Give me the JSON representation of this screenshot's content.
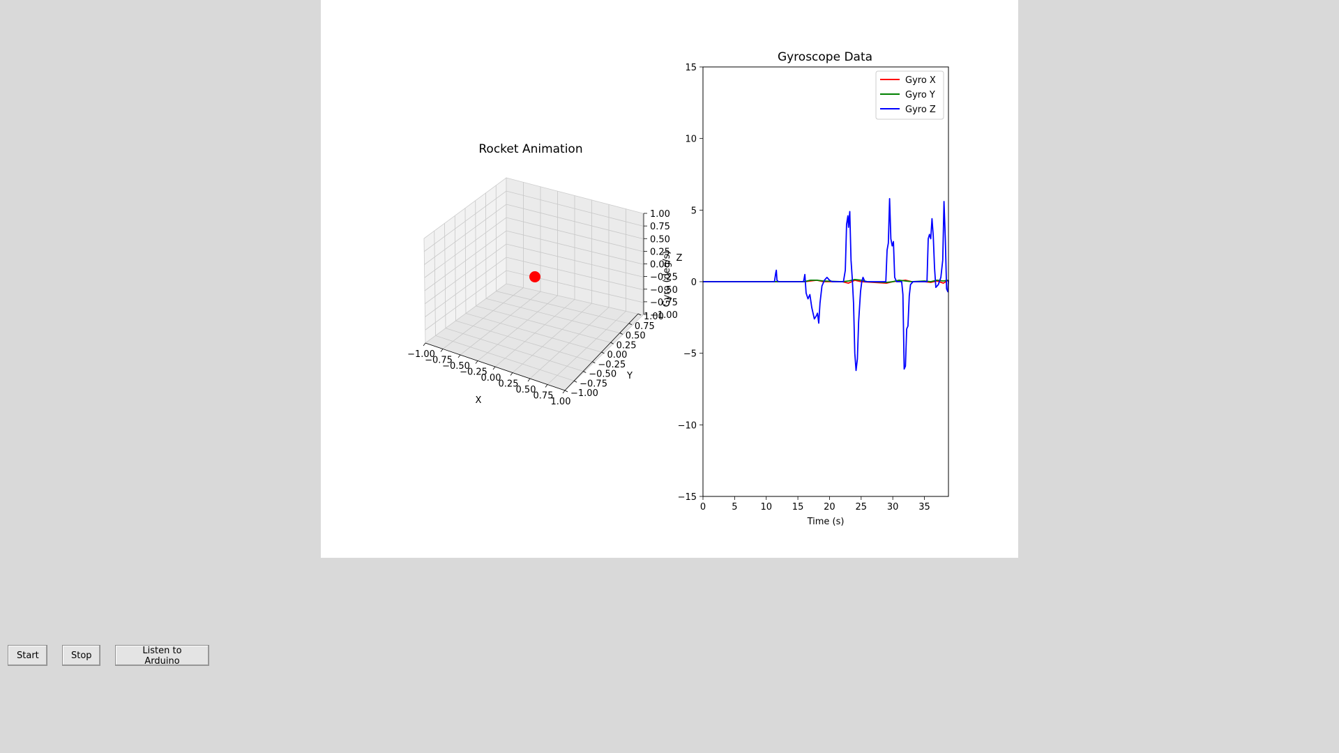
{
  "buttons": {
    "start": "Start",
    "stop": "Stop",
    "listen": "Listen to Arduino"
  },
  "colors": {
    "window_bg": "#d9d9d9",
    "figure_bg": "#ffffff",
    "marker": "#ff0000",
    "gyro_x": "#ff0000",
    "gyro_y": "#008000",
    "gyro_z": "#0000ff"
  },
  "chart_data": [
    {
      "type": "scatter",
      "subtype": "3d",
      "title": "Rocket Animation",
      "xlabel": "X",
      "ylabel": "Y",
      "zlabel": "Z",
      "overlapping_label": "Gyro (deg/s)",
      "xlim": [
        -1,
        1
      ],
      "ylim": [
        -1,
        1
      ],
      "zlim": [
        -1,
        1
      ],
      "tick_labels": [
        "−1.00",
        "−0.75",
        "−0.50",
        "−0.25",
        "0.00",
        "0.25",
        "0.50",
        "0.75",
        "1.00"
      ],
      "points": [
        {
          "x": 0,
          "y": 0,
          "z": 0
        }
      ],
      "marker_color": "#ff0000",
      "grid": true
    },
    {
      "type": "line",
      "title": "Gyroscope Data",
      "xlabel": "Time (s)",
      "ylabel": "",
      "xlim": [
        0,
        38.8
      ],
      "ylim": [
        -15,
        15
      ],
      "xticks": [
        "0",
        "5",
        "10",
        "15",
        "20",
        "25",
        "30",
        "35"
      ],
      "yticks": [
        "15",
        "10",
        "5",
        "0",
        "−5",
        "−10",
        "−15"
      ],
      "legend_position": "top-right",
      "grid": false,
      "series": [
        {
          "name": "Gyro X",
          "color": "#ff0000",
          "points": [
            [
              0,
              0
            ],
            [
              16,
              0
            ],
            [
              17,
              0.05
            ],
            [
              18,
              0.1
            ],
            [
              19,
              0
            ],
            [
              22,
              0
            ],
            [
              23,
              -0.1
            ],
            [
              24,
              0.1
            ],
            [
              25,
              0
            ],
            [
              29,
              -0.1
            ],
            [
              30,
              0
            ],
            [
              31,
              0.05
            ],
            [
              32,
              0.1
            ],
            [
              33,
              0
            ],
            [
              35,
              0
            ],
            [
              36,
              -0.05
            ],
            [
              37,
              0.05
            ],
            [
              38,
              -0.1
            ],
            [
              38.8,
              0.1
            ]
          ]
        },
        {
          "name": "Gyro Y",
          "color": "#008000",
          "points": [
            [
              0,
              0
            ],
            [
              16,
              0
            ],
            [
              17,
              0.1
            ],
            [
              18,
              0.1
            ],
            [
              19,
              0.05
            ],
            [
              22,
              0
            ],
            [
              23,
              0.05
            ],
            [
              24,
              0.15
            ],
            [
              25,
              0.1
            ],
            [
              26,
              0
            ],
            [
              29,
              -0.05
            ],
            [
              30,
              0
            ],
            [
              31,
              0.1
            ],
            [
              32,
              0.05
            ],
            [
              33,
              0
            ],
            [
              35,
              0.05
            ],
            [
              36,
              0
            ],
            [
              37,
              0.1
            ],
            [
              38,
              0.05
            ],
            [
              38.8,
              0.1
            ]
          ]
        },
        {
          "name": "Gyro Z",
          "color": "#0000ff",
          "points": [
            [
              0,
              0
            ],
            [
              11.3,
              0
            ],
            [
              11.5,
              0.6
            ],
            [
              11.6,
              0.8
            ],
            [
              11.7,
              0.1
            ],
            [
              11.9,
              0
            ],
            [
              15.9,
              0
            ],
            [
              16.1,
              0.5
            ],
            [
              16.3,
              -0.8
            ],
            [
              16.6,
              -1.2
            ],
            [
              16.9,
              -0.9
            ],
            [
              17.2,
              -1.8
            ],
            [
              17.6,
              -2.6
            ],
            [
              17.9,
              -2.4
            ],
            [
              18.1,
              -2.2
            ],
            [
              18.3,
              -2.9
            ],
            [
              18.5,
              -1.5
            ],
            [
              18.8,
              -0.3
            ],
            [
              19.2,
              0.1
            ],
            [
              19.6,
              0.3
            ],
            [
              20,
              0.1
            ],
            [
              20.4,
              0
            ],
            [
              22.2,
              0
            ],
            [
              22.5,
              0.8
            ],
            [
              22.7,
              4.0
            ],
            [
              22.9,
              4.6
            ],
            [
              23.0,
              3.8
            ],
            [
              23.2,
              4.9
            ],
            [
              23.4,
              1.5
            ],
            [
              23.6,
              0.2
            ],
            [
              23.8,
              -1.5
            ],
            [
              24.0,
              -5.0
            ],
            [
              24.2,
              -6.2
            ],
            [
              24.4,
              -5.4
            ],
            [
              24.6,
              -2.8
            ],
            [
              24.9,
              -0.7
            ],
            [
              25.1,
              0
            ],
            [
              25.3,
              0.3
            ],
            [
              25.6,
              0
            ],
            [
              28.9,
              0
            ],
            [
              29.1,
              2.2
            ],
            [
              29.3,
              2.7
            ],
            [
              29.5,
              5.8
            ],
            [
              29.7,
              3.0
            ],
            [
              29.9,
              2.5
            ],
            [
              30.1,
              2.8
            ],
            [
              30.3,
              0.3
            ],
            [
              30.6,
              0
            ],
            [
              31.4,
              0
            ],
            [
              31.6,
              -0.9
            ],
            [
              31.8,
              -6.1
            ],
            [
              32.0,
              -5.9
            ],
            [
              32.2,
              -3.3
            ],
            [
              32.4,
              -3.1
            ],
            [
              32.6,
              -1.0
            ],
            [
              32.8,
              -0.2
            ],
            [
              33.2,
              0
            ],
            [
              35.4,
              0
            ],
            [
              35.6,
              3.0
            ],
            [
              35.8,
              3.3
            ],
            [
              36.0,
              3.0
            ],
            [
              36.2,
              4.4
            ],
            [
              36.4,
              3.2
            ],
            [
              36.6,
              1.0
            ],
            [
              36.8,
              -0.4
            ],
            [
              37.2,
              -0.2
            ],
            [
              37.6,
              0.3
            ],
            [
              37.9,
              1.5
            ],
            [
              38.1,
              5.6
            ],
            [
              38.3,
              3.0
            ],
            [
              38.5,
              -0.5
            ],
            [
              38.7,
              -0.7
            ],
            [
              38.8,
              0.1
            ]
          ]
        }
      ]
    }
  ]
}
